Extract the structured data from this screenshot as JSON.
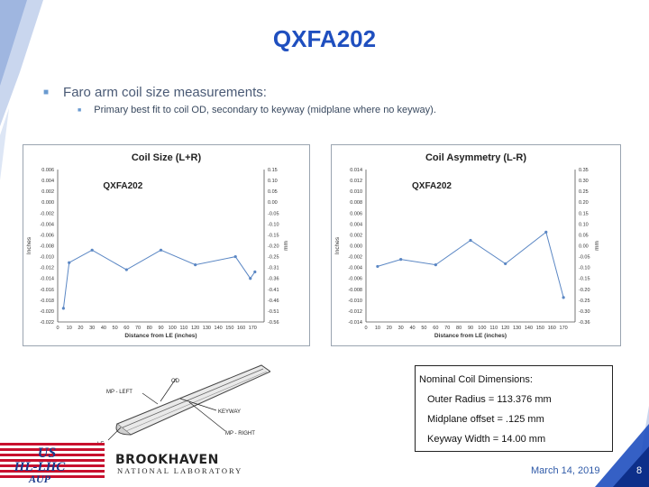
{
  "slide": {
    "title": "QXFA202",
    "bullet": "Faro arm coil size measurements:",
    "sub_bullet": "Primary best fit to coil OD, secondary to keyway (midplane where no keyway).",
    "date": "March 14, 2019",
    "page": "8"
  },
  "nominal": {
    "heading": "Nominal Coil Dimensions:",
    "outer_radius": "Outer Radius = 113.376 mm",
    "midplane": "Midplane offset = .125 mm",
    "keyway": "Keyway Width = 14.00 mm"
  },
  "diagram_labels": {
    "od": "OD",
    "mp_left": "MP - LEFT",
    "keyway": "KEYWAY",
    "mp_right": "MP - RIGHT",
    "le": "LE"
  },
  "logos": {
    "us_line1": "US",
    "us_line2": "HL-LHC",
    "us_line3": "AUP",
    "bnl_top": "BROOKHAVEN",
    "bnl_bottom": "NATIONAL LABORATORY"
  },
  "colors": {
    "title": "#1f4fbf",
    "series": "#5b87c4",
    "axis_text": "#333333"
  },
  "chart_data": [
    {
      "type": "line",
      "title": "Coil Size (L+R)",
      "annotation": "QXFA202",
      "xlabel": "Distance from LE (inches)",
      "ylabel": "Inches",
      "y2label": "mm",
      "xlim": [
        0,
        180
      ],
      "xticks": [
        0,
        10,
        20,
        30,
        40,
        50,
        60,
        70,
        80,
        90,
        100,
        110,
        120,
        130,
        140,
        150,
        160,
        170
      ],
      "ylim": [
        -0.022,
        0.006
      ],
      "yticks": [
        0.006,
        0.004,
        0.002,
        0,
        -0.002,
        -0.004,
        -0.006,
        -0.008,
        -0.01,
        -0.012,
        -0.014,
        -0.016,
        -0.018,
        -0.02,
        -0.022
      ],
      "ytick_labels": [
        "0.006",
        "0.004",
        "0.002",
        "0.000",
        "-0.002",
        "-0.004",
        "-0.006",
        "-0.008",
        "-0.010",
        "-0.012",
        "-0.014",
        "-0.016",
        "-0.018",
        "-0.020",
        "-0.022"
      ],
      "y2ticks": [
        "0.15",
        "0.10",
        "0.05",
        "0.00",
        "-0.05",
        "-0.10",
        "-0.15",
        "-0.20",
        "-0.25",
        "-0.31",
        "-0.36",
        "-0.41",
        "-0.46",
        "-0.51",
        "-0.56"
      ],
      "grid": false,
      "x": [
        5,
        10,
        30,
        60,
        90,
        120,
        155,
        168,
        172
      ],
      "y": [
        -0.0195,
        -0.0111,
        -0.0088,
        -0.0124,
        -0.0088,
        -0.0115,
        -0.01,
        -0.014,
        -0.0128
      ]
    },
    {
      "type": "line",
      "title": "Coil Asymmetry (L-R)",
      "annotation": "QXFA202",
      "xlabel": "Distance from LE (inches)",
      "ylabel": "Inches",
      "y2label": "mm",
      "xlim": [
        0,
        180
      ],
      "xticks": [
        0,
        10,
        20,
        30,
        40,
        50,
        60,
        70,
        80,
        90,
        100,
        110,
        120,
        130,
        140,
        150,
        160,
        170
      ],
      "ylim": [
        -0.014,
        0.014
      ],
      "yticks": [
        0.014,
        0.012,
        0.01,
        0.008,
        0.006,
        0.004,
        0.002,
        0,
        -0.002,
        -0.004,
        -0.006,
        -0.008,
        -0.01,
        -0.012,
        -0.014
      ],
      "ytick_labels": [
        "0.014",
        "0.012",
        "0.010",
        "0.008",
        "0.006",
        "0.004",
        "0.002",
        "0.000",
        "-0.002",
        "-0.004",
        "-0.006",
        "-0.008",
        "-0.010",
        "-0.012",
        "-0.014"
      ],
      "y2ticks": [
        "0.35",
        "0.30",
        "0.25",
        "0.20",
        "0.15",
        "0.10",
        "0.05",
        "0.00",
        "-0.05",
        "-0.10",
        "-0.15",
        "-0.20",
        "-0.25",
        "-0.30",
        "-0.36"
      ],
      "grid": false,
      "x": [
        10,
        30,
        60,
        90,
        120,
        155,
        170
      ],
      "y": [
        -0.0038,
        -0.0025,
        -0.0035,
        0.001,
        -0.0033,
        0.0025,
        -0.0095
      ]
    }
  ]
}
